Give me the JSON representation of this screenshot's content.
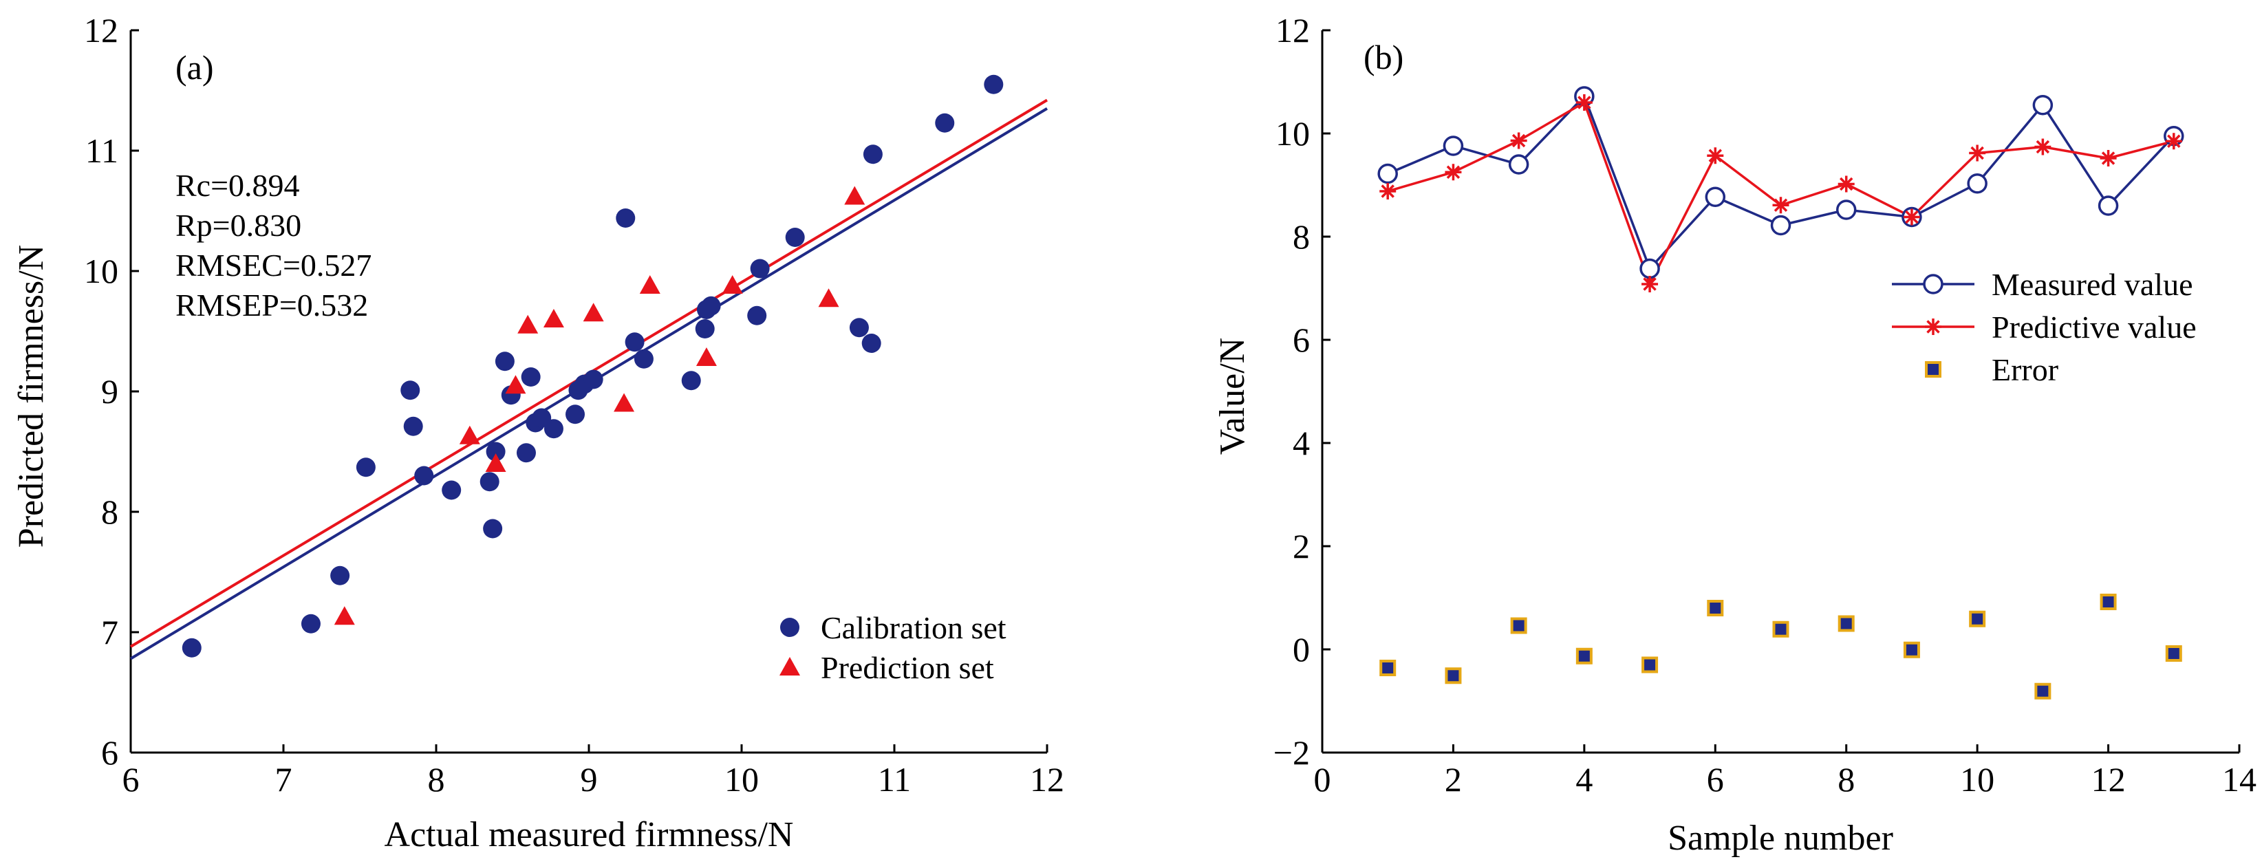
{
  "colors": {
    "calibration": "#1f2a86",
    "prediction": "#e8141c",
    "measured": "#1f2a86",
    "predictive": "#e8141c",
    "error_fill": "#1f2a86",
    "error_edge": "#e6a817",
    "axis": "#000000"
  },
  "chart_data": [
    {
      "type": "scatter",
      "panel_label": "(a)",
      "xlabel": "Actual measured firmness/N",
      "ylabel": "Predicted firmness/N",
      "xlim": [
        6,
        12
      ],
      "ylim": [
        6,
        12
      ],
      "xticks": [
        "6",
        "7",
        "8",
        "9",
        "10",
        "11",
        "12"
      ],
      "yticks": [
        "6",
        "7",
        "8",
        "9",
        "10",
        "11",
        "12"
      ],
      "grid": false,
      "legend_position": "bottom-right",
      "annotations": [
        "Rc=0.894",
        "Rp=0.830",
        "RMSEC=0.527",
        "RMSEP=0.532"
      ],
      "series": [
        {
          "name": "Calibration set",
          "marker": "circle",
          "points": [
            [
              6.4,
              6.87
            ],
            [
              7.18,
              7.07
            ],
            [
              7.37,
              7.47
            ],
            [
              7.54,
              8.37
            ],
            [
              7.83,
              9.01
            ],
            [
              7.85,
              8.71
            ],
            [
              7.92,
              8.3
            ],
            [
              8.1,
              8.18
            ],
            [
              8.35,
              8.25
            ],
            [
              8.37,
              7.86
            ],
            [
              8.39,
              8.5
            ],
            [
              8.45,
              9.25
            ],
            [
              8.49,
              8.97
            ],
            [
              8.59,
              8.49
            ],
            [
              8.62,
              9.12
            ],
            [
              8.65,
              8.74
            ],
            [
              8.69,
              8.78
            ],
            [
              8.77,
              8.69
            ],
            [
              8.91,
              8.81
            ],
            [
              8.93,
              9.01
            ],
            [
              8.97,
              9.06
            ],
            [
              9.03,
              9.1
            ],
            [
              9.24,
              10.44
            ],
            [
              9.3,
              9.41
            ],
            [
              9.36,
              9.27
            ],
            [
              9.67,
              9.09
            ],
            [
              9.76,
              9.52
            ],
            [
              9.77,
              9.68
            ],
            [
              9.8,
              9.71
            ],
            [
              10.1,
              9.63
            ],
            [
              10.12,
              10.02
            ],
            [
              10.35,
              10.28
            ],
            [
              10.77,
              9.53
            ],
            [
              10.85,
              9.4
            ],
            [
              10.86,
              10.97
            ],
            [
              11.33,
              11.23
            ],
            [
              11.65,
              11.55
            ]
          ],
          "fit_line": [
            [
              6,
              6.78
            ],
            [
              12,
              11.35
            ]
          ]
        },
        {
          "name": "Prediction set",
          "marker": "triangle",
          "points": [
            [
              7.4,
              7.13
            ],
            [
              8.22,
              8.63
            ],
            [
              8.39,
              8.4
            ],
            [
              8.52,
              9.05
            ],
            [
              8.6,
              9.55
            ],
            [
              8.77,
              9.6
            ],
            [
              9.03,
              9.65
            ],
            [
              9.23,
              8.9
            ],
            [
              9.4,
              9.88
            ],
            [
              9.77,
              9.28
            ],
            [
              9.94,
              9.88
            ],
            [
              10.57,
              9.77
            ],
            [
              10.74,
              10.62
            ]
          ],
          "fit_line": [
            [
              6,
              6.88
            ],
            [
              12,
              11.42
            ]
          ]
        }
      ]
    },
    {
      "type": "line",
      "panel_label": "(b)",
      "xlabel": "Sample number",
      "ylabel": "Value/N",
      "xlim": [
        0,
        14
      ],
      "ylim": [
        -2,
        12
      ],
      "xticks": [
        "0",
        "2",
        "4",
        "6",
        "8",
        "10",
        "12",
        "14"
      ],
      "yticks": [
        "-2",
        "0",
        "2",
        "4",
        "6",
        "8",
        "10",
        "12"
      ],
      "grid": false,
      "legend_position": "center-right",
      "x": [
        1,
        2,
        3,
        4,
        5,
        6,
        7,
        8,
        9,
        10,
        11,
        12,
        13
      ],
      "series": [
        {
          "name": "Measured value",
          "marker": "open-circle",
          "values": [
            9.22,
            9.76,
            9.4,
            10.72,
            7.38,
            8.77,
            8.22,
            8.52,
            8.38,
            9.03,
            10.55,
            8.6,
            9.95
          ]
        },
        {
          "name": "Predictive value",
          "marker": "asterisk",
          "values": [
            8.88,
            9.25,
            9.86,
            10.6,
            7.08,
            9.57,
            8.61,
            9.02,
            8.38,
            9.62,
            9.74,
            9.52,
            9.85
          ]
        },
        {
          "name": "Error",
          "marker": "square",
          "values": [
            -0.36,
            -0.51,
            0.46,
            -0.13,
            -0.3,
            0.8,
            0.39,
            0.5,
            -0.01,
            0.59,
            -0.81,
            0.92,
            -0.08
          ]
        }
      ]
    }
  ]
}
